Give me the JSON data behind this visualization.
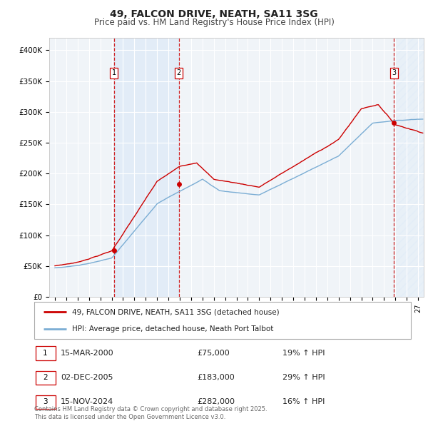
{
  "title": "49, FALCON DRIVE, NEATH, SA11 3SG",
  "subtitle": "Price paid vs. HM Land Registry's House Price Index (HPI)",
  "ylim": [
    0,
    420000
  ],
  "yticks": [
    0,
    50000,
    100000,
    150000,
    200000,
    250000,
    300000,
    350000,
    400000
  ],
  "ytick_labels": [
    "£0",
    "£50K",
    "£100K",
    "£150K",
    "£200K",
    "£250K",
    "£300K",
    "£350K",
    "£400K"
  ],
  "xlim_start": 1994.5,
  "xlim_end": 2027.5,
  "background_color": "#ffffff",
  "plot_bg_color": "#f0f4f8",
  "grid_color": "#ffffff",
  "sale_color": "#cc0000",
  "hpi_color": "#7aadd4",
  "shade_color": "#ddeaf7",
  "sale_label": "49, FALCON DRIVE, NEATH, SA11 3SG (detached house)",
  "hpi_label": "HPI: Average price, detached house, Neath Port Talbot",
  "transactions": [
    {
      "num": 1,
      "date": "15-MAR-2000",
      "price": 75000,
      "pct": "19%",
      "year": 2000.21
    },
    {
      "num": 2,
      "date": "02-DEC-2005",
      "price": 183000,
      "pct": "29%",
      "year": 2005.92
    },
    {
      "num": 3,
      "date": "15-NOV-2024",
      "price": 282000,
      "pct": "16%",
      "year": 2024.87
    }
  ],
  "footnote": "Contains HM Land Registry data © Crown copyright and database right 2025.\nThis data is licensed under the Open Government Licence v3.0."
}
